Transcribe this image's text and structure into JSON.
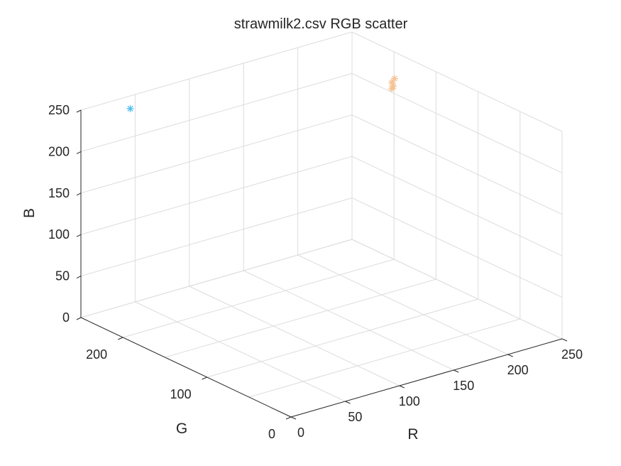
{
  "chart_data": {
    "type": "scatter",
    "title": "strawmilk2.csv RGB scatter",
    "xlabel": "R",
    "ylabel": "G",
    "zlabel": "B",
    "xlim": [
      0,
      250
    ],
    "ylim": [
      0,
      250
    ],
    "zlim": [
      0,
      250
    ],
    "xticks": [
      0,
      50,
      100,
      150,
      200,
      250
    ],
    "yticks": [
      0,
      100,
      200
    ],
    "zticks": [
      0,
      50,
      100,
      150,
      200,
      250
    ],
    "grid": true,
    "marker": "asterisk",
    "series": [
      {
        "color": "#4DBEEE",
        "points": [
          {
            "R": 30,
            "G": 230,
            "B": 250
          }
        ]
      },
      {
        "color": "#F6C193",
        "points": [
          {
            "R": 235,
            "G": 180,
            "B": 233
          },
          {
            "R": 232,
            "G": 178,
            "B": 226
          },
          {
            "R": 234,
            "G": 182,
            "B": 228
          },
          {
            "R": 230,
            "G": 177,
            "B": 224
          },
          {
            "R": 233,
            "G": 179,
            "B": 225
          }
        ]
      }
    ]
  }
}
